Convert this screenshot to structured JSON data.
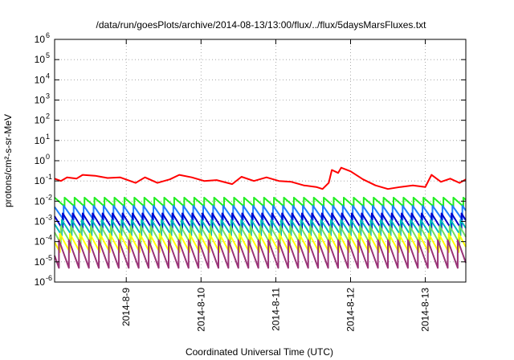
{
  "chart_data": {
    "type": "line",
    "title": "/data/run/goesPlots/archive/2014-08-13/13:00/flux/../flux/5daysMarsFluxes.txt",
    "xlabel": "Coordinated Universal Time (UTC)",
    "ylabel": "protons/cm²-s-sr-MeV",
    "yscale": "log",
    "ylim": [
      1e-06,
      1000000.0
    ],
    "xlim": [
      "2014-08-08 01:00",
      "2014-08-13 13:00"
    ],
    "grid": true,
    "y_ticks": [
      {
        "value": 1e-06,
        "base": "10",
        "exp": "-6"
      },
      {
        "value": 1e-05,
        "base": "10",
        "exp": "-5"
      },
      {
        "value": 0.0001,
        "base": "10",
        "exp": "-4"
      },
      {
        "value": 0.001,
        "base": "10",
        "exp": "-3"
      },
      {
        "value": 0.01,
        "base": "10",
        "exp": "-2"
      },
      {
        "value": 0.1,
        "base": "10",
        "exp": "-1"
      },
      {
        "value": 1.0,
        "base": "10",
        "exp": "0"
      },
      {
        "value": 10.0,
        "base": "10",
        "exp": "1"
      },
      {
        "value": 100.0,
        "base": "10",
        "exp": "2"
      },
      {
        "value": 1000.0,
        "base": "10",
        "exp": "3"
      },
      {
        "value": 10000.0,
        "base": "10",
        "exp": "4"
      },
      {
        "value": 100000.0,
        "base": "10",
        "exp": "5"
      },
      {
        "value": 1000000.0,
        "base": "10",
        "exp": "6"
      }
    ],
    "x_ticks": [
      {
        "date": "2014-08-09 00:00",
        "label": "2014-8-9"
      },
      {
        "date": "2014-08-10 00:00",
        "label": "2014-8-10"
      },
      {
        "date": "2014-08-11 00:00",
        "label": "2014-8-11"
      },
      {
        "date": "2014-08-12 00:00",
        "label": "2014-8-12"
      },
      {
        "date": "2014-08-13 00:00",
        "label": "2014-8-13"
      }
    ],
    "series": [
      {
        "color": "#ff0000",
        "values": [
          [
            "2014-08-08 01:00",
            0.13
          ],
          [
            "2014-08-08 03:00",
            0.1
          ],
          [
            "2014-08-08 05:00",
            0.15
          ],
          [
            "2014-08-08 08:00",
            0.13
          ],
          [
            "2014-08-08 10:00",
            0.2
          ],
          [
            "2014-08-08 14:00",
            0.18
          ],
          [
            "2014-08-08 18:00",
            0.14
          ],
          [
            "2014-08-08 22:00",
            0.15
          ],
          [
            "2014-08-09 03:00",
            0.08
          ],
          [
            "2014-08-09 06:00",
            0.15
          ],
          [
            "2014-08-09 10:00",
            0.08
          ],
          [
            "2014-08-09 14:00",
            0.12
          ],
          [
            "2014-08-09 17:00",
            0.2
          ],
          [
            "2014-08-09 21:00",
            0.15
          ],
          [
            "2014-08-10 01:00",
            0.1
          ],
          [
            "2014-08-10 05:00",
            0.11
          ],
          [
            "2014-08-10 10:00",
            0.07
          ],
          [
            "2014-08-10 13:00",
            0.16
          ],
          [
            "2014-08-10 17:00",
            0.1
          ],
          [
            "2014-08-10 21:00",
            0.15
          ],
          [
            "2014-08-11 01:00",
            0.1
          ],
          [
            "2014-08-11 05:00",
            0.09
          ],
          [
            "2014-08-11 09:00",
            0.06
          ],
          [
            "2014-08-11 13:00",
            0.05
          ],
          [
            "2014-08-11 15:00",
            0.04
          ],
          [
            "2014-08-11 17:00",
            0.08
          ],
          [
            "2014-08-11 18:00",
            0.35
          ],
          [
            "2014-08-11 20:00",
            0.25
          ],
          [
            "2014-08-11 21:00",
            0.45
          ],
          [
            "2014-08-12 00:00",
            0.3
          ],
          [
            "2014-08-12 04:00",
            0.12
          ],
          [
            "2014-08-12 08:00",
            0.06
          ],
          [
            "2014-08-12 12:00",
            0.04
          ],
          [
            "2014-08-12 16:00",
            0.05
          ],
          [
            "2014-08-12 20:00",
            0.06
          ],
          [
            "2014-08-13 00:00",
            0.05
          ],
          [
            "2014-08-13 02:00",
            0.2
          ],
          [
            "2014-08-13 05:00",
            0.09
          ],
          [
            "2014-08-13 08:00",
            0.13
          ],
          [
            "2014-08-13 11:00",
            0.08
          ],
          [
            "2014-08-13 13:00",
            0.12
          ]
        ]
      },
      {
        "color": "#22ee22",
        "hi": 0.015,
        "lo": 0.0055,
        "phase": 0.0
      },
      {
        "color": "#1e7fff",
        "hi": 0.006,
        "lo": 0.0012,
        "phase": 0.3
      },
      {
        "color": "#0000cc",
        "hi": 0.0025,
        "lo": 0.0004,
        "phase": 0.6
      },
      {
        "color": "#00bbbb",
        "hi": 0.0012,
        "lo": 0.0002,
        "phase": 0.9
      },
      {
        "color": "#77dd66",
        "hi": 0.0006,
        "lo": 8e-05,
        "phase": 1.2
      },
      {
        "color": "#ffff00",
        "hi": 0.00025,
        "lo": 3e-05,
        "phase": 1.5
      },
      {
        "color": "#993377",
        "hi": 0.00012,
        "lo": 5e-06,
        "phase": 1.8
      }
    ],
    "cycle_hours": 3.2
  }
}
